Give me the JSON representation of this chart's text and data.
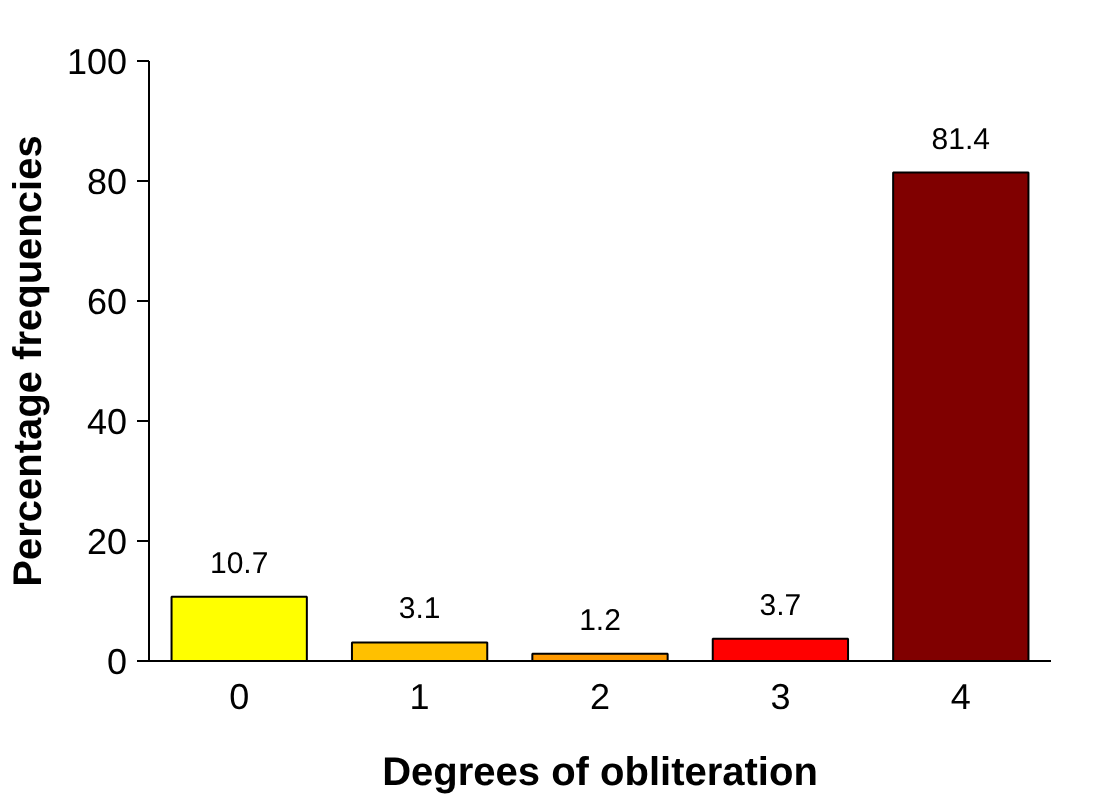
{
  "chart_data": {
    "type": "bar",
    "xlabel": "Degrees of obliteration",
    "ylabel": "Percentage frequencies",
    "categories": [
      "0",
      "1",
      "2",
      "3",
      "4"
    ],
    "values": [
      10.7,
      3.1,
      1.2,
      3.7,
      81.4
    ],
    "colors": [
      "#ffff00",
      "#ffc000",
      "#ff9900",
      "#ff0000",
      "#800000"
    ],
    "ylim": [
      0,
      100
    ],
    "yticks": [
      0,
      20,
      40,
      60,
      80,
      100
    ],
    "data_labels": true,
    "grid": false
  }
}
